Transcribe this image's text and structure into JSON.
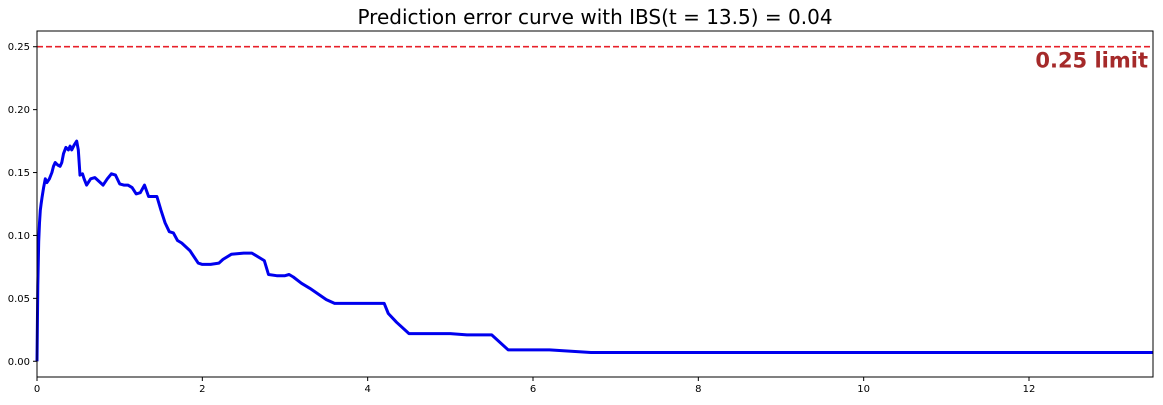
{
  "chart_data": {
    "type": "line",
    "title": "Prediction error curve with IBS(t = 13.5) = 0.04",
    "xlabel": "",
    "ylabel": "",
    "xlim": [
      0,
      13.5
    ],
    "ylim": [
      -0.0125,
      0.2625
    ],
    "xticks": [
      0,
      2,
      4,
      6,
      8,
      10,
      12
    ],
    "yticks": [
      0.0,
      0.05,
      0.1,
      0.15,
      0.2,
      0.25
    ],
    "ytick_labels": [
      "0.00",
      "0.05",
      "0.10",
      "0.15",
      "0.20",
      "0.25"
    ],
    "grid": false,
    "series": [
      {
        "color": "#0000ee",
        "x": [
          0,
          0.01,
          0.02,
          0.03,
          0.04,
          0.05,
          0.06,
          0.08,
          0.1,
          0.12,
          0.15,
          0.18,
          0.2,
          0.22,
          0.25,
          0.28,
          0.3,
          0.32,
          0.35,
          0.38,
          0.4,
          0.42,
          0.45,
          0.48,
          0.5,
          0.52,
          0.55,
          0.57,
          0.6,
          0.65,
          0.7,
          0.75,
          0.8,
          0.85,
          0.9,
          0.95,
          1.0,
          1.05,
          1.1,
          1.15,
          1.2,
          1.25,
          1.3,
          1.35,
          1.4,
          1.45,
          1.5,
          1.55,
          1.6,
          1.65,
          1.7,
          1.75,
          1.85,
          1.95,
          2.0,
          2.1,
          2.2,
          2.25,
          2.35,
          2.5,
          2.6,
          2.7,
          2.75,
          2.8,
          2.9,
          3.0,
          3.05,
          3.1,
          3.2,
          3.3,
          3.5,
          3.6,
          3.8,
          4.0,
          4.2,
          4.25,
          4.35,
          4.5,
          5.0,
          5.2,
          5.5,
          5.7,
          6.2,
          6.7,
          13.5
        ],
        "y": [
          0.0,
          0.06,
          0.095,
          0.11,
          0.12,
          0.125,
          0.13,
          0.138,
          0.145,
          0.142,
          0.145,
          0.15,
          0.155,
          0.158,
          0.156,
          0.155,
          0.158,
          0.165,
          0.17,
          0.168,
          0.171,
          0.168,
          0.172,
          0.175,
          0.168,
          0.148,
          0.149,
          0.145,
          0.14,
          0.145,
          0.146,
          0.143,
          0.14,
          0.145,
          0.149,
          0.148,
          0.141,
          0.14,
          0.14,
          0.138,
          0.133,
          0.134,
          0.14,
          0.131,
          0.131,
          0.131,
          0.12,
          0.11,
          0.103,
          0.102,
          0.096,
          0.094,
          0.088,
          0.078,
          0.077,
          0.077,
          0.078,
          0.081,
          0.085,
          0.086,
          0.086,
          0.082,
          0.08,
          0.069,
          0.068,
          0.068,
          0.069,
          0.067,
          0.062,
          0.058,
          0.049,
          0.046,
          0.046,
          0.046,
          0.046,
          0.038,
          0.031,
          0.022,
          0.022,
          0.021,
          0.021,
          0.009,
          0.009,
          0.007,
          0.007
        ]
      }
    ],
    "reference_line": {
      "y": 0.25,
      "color": "#e8202a",
      "style": "dashed",
      "label": "0.25 limit",
      "label_color": "#a52a2a"
    }
  }
}
